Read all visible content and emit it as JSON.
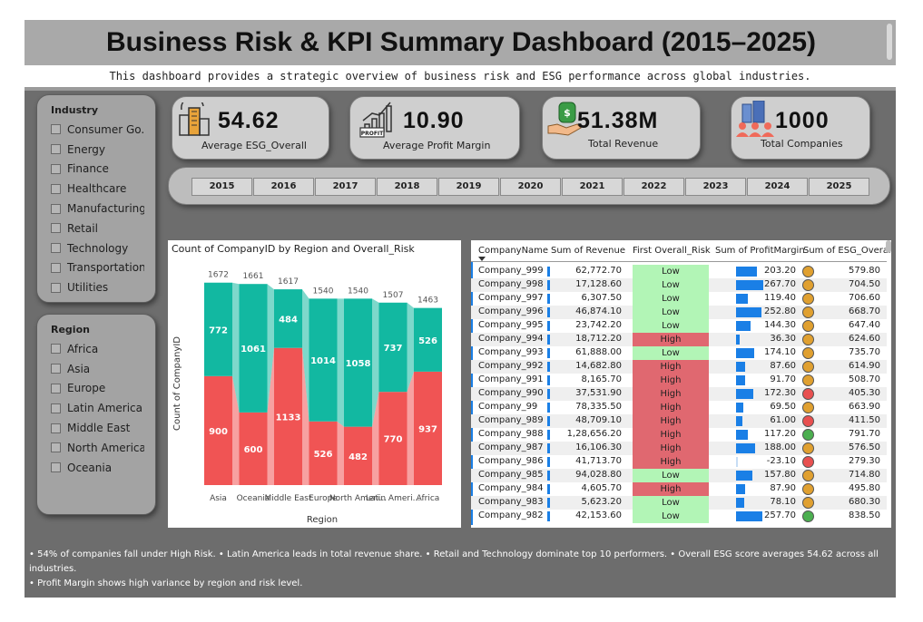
{
  "header": {
    "title": "Business Risk & KPI Summary Dashboard (2015–2025)",
    "subtitle": "This dashboard provides a strategic overview of business risk and ESG performance across global industries."
  },
  "industry_slicer": {
    "title": "Industry",
    "items": [
      "Consumer Go...",
      "Energy",
      "Finance",
      "Healthcare",
      "Manufacturing",
      "Retail",
      "Technology",
      "Transportation",
      "Utilities"
    ]
  },
  "region_slicer": {
    "title": "Region",
    "items": [
      "Africa",
      "Asia",
      "Europe",
      "Latin America",
      "Middle East",
      "North America",
      "Oceania"
    ]
  },
  "kpis": [
    {
      "value": "54.62",
      "label": "Average ESG_Overall",
      "icon": "buildings-icon"
    },
    {
      "value": "10.90",
      "label": "Average Profit Margin",
      "icon": "profit-chart-icon"
    },
    {
      "value": "51.38M",
      "label": "Total Revenue",
      "icon": "money-hand-icon"
    },
    {
      "value": "1000",
      "label": "Total Companies",
      "icon": "company-people-icon"
    }
  ],
  "years": [
    "2015",
    "2016",
    "2017",
    "2018",
    "2019",
    "2020",
    "2021",
    "2022",
    "2023",
    "2024",
    "2025"
  ],
  "colors": {
    "high": "#f05454",
    "low": "#12b8a1",
    "high_row": "#e06870",
    "low_row": "#b2f5b6",
    "accent": "#1a7fe6"
  },
  "chart_data": {
    "type": "bar",
    "title": "Count of CompanyID by Region and Overall_Risk",
    "xlabel": "Region",
    "ylabel": "Count of CompanyID",
    "categories": [
      "Asia",
      "Oceania",
      "Middle East",
      "Europe",
      "North Ameri...",
      "Latin Ameri...",
      "Africa"
    ],
    "totals": [
      1672,
      1661,
      1617,
      1540,
      1540,
      1507,
      1463
    ],
    "series": [
      {
        "name": "High",
        "values": [
          900,
          600,
          1133,
          526,
          482,
          770,
          937
        ]
      },
      {
        "name": "Low",
        "values": [
          772,
          1061,
          484,
          1014,
          1058,
          737,
          526
        ]
      }
    ],
    "ylim": [
      0,
      1700
    ]
  },
  "table": {
    "columns": [
      "CompanyName",
      "Sum of Revenue",
      "First Overall_Risk",
      "Sum of ProfitMargin",
      "Sum of ESG_Overall"
    ],
    "rows": [
      {
        "name": "Company_999",
        "revenue": "62,772.70",
        "risk": "Low",
        "pm": "203.20",
        "pm_val": 203.2,
        "esg": "579.80",
        "dot": "#e0a030"
      },
      {
        "name": "Company_998",
        "revenue": "17,128.60",
        "risk": "Low",
        "pm": "267.70",
        "pm_val": 267.7,
        "esg": "704.50",
        "dot": "#e0a030"
      },
      {
        "name": "Company_997",
        "revenue": "6,307.50",
        "risk": "Low",
        "pm": "119.40",
        "pm_val": 119.4,
        "esg": "706.60",
        "dot": "#e0a030"
      },
      {
        "name": "Company_996",
        "revenue": "46,874.10",
        "risk": "Low",
        "pm": "252.80",
        "pm_val": 252.8,
        "esg": "668.70",
        "dot": "#e0a030"
      },
      {
        "name": "Company_995",
        "revenue": "23,742.20",
        "risk": "Low",
        "pm": "144.30",
        "pm_val": 144.3,
        "esg": "647.40",
        "dot": "#e0a030"
      },
      {
        "name": "Company_994",
        "revenue": "18,712.20",
        "risk": "High",
        "pm": "36.30",
        "pm_val": 36.3,
        "esg": "624.60",
        "dot": "#e0a030"
      },
      {
        "name": "Company_993",
        "revenue": "61,888.00",
        "risk": "Low",
        "pm": "174.10",
        "pm_val": 174.1,
        "esg": "735.70",
        "dot": "#e0a030"
      },
      {
        "name": "Company_992",
        "revenue": "14,682.80",
        "risk": "High",
        "pm": "87.60",
        "pm_val": 87.6,
        "esg": "614.90",
        "dot": "#e0a030"
      },
      {
        "name": "Company_991",
        "revenue": "8,165.70",
        "risk": "High",
        "pm": "91.70",
        "pm_val": 91.7,
        "esg": "508.70",
        "dot": "#e0a030"
      },
      {
        "name": "Company_990",
        "revenue": "37,531.90",
        "risk": "High",
        "pm": "172.30",
        "pm_val": 172.3,
        "esg": "405.30",
        "dot": "#e85050"
      },
      {
        "name": "Company_99",
        "revenue": "78,335.50",
        "risk": "High",
        "pm": "69.50",
        "pm_val": 69.5,
        "esg": "663.90",
        "dot": "#e0a030"
      },
      {
        "name": "Company_989",
        "revenue": "48,709.10",
        "risk": "High",
        "pm": "61.00",
        "pm_val": 61.0,
        "esg": "411.50",
        "dot": "#e85050"
      },
      {
        "name": "Company_988",
        "revenue": "1,28,656.20",
        "risk": "High",
        "pm": "117.20",
        "pm_val": 117.2,
        "esg": "791.70",
        "dot": "#4caf50"
      },
      {
        "name": "Company_987",
        "revenue": "16,106.30",
        "risk": "High",
        "pm": "188.00",
        "pm_val": 188.0,
        "esg": "576.50",
        "dot": "#e0a030"
      },
      {
        "name": "Company_986",
        "revenue": "41,713.70",
        "risk": "High",
        "pm": "-23.10",
        "pm_val": -23.1,
        "esg": "279.30",
        "dot": "#e85050"
      },
      {
        "name": "Company_985",
        "revenue": "94,028.80",
        "risk": "Low",
        "pm": "157.80",
        "pm_val": 157.8,
        "esg": "714.80",
        "dot": "#e0a030"
      },
      {
        "name": "Company_984",
        "revenue": "4,605.70",
        "risk": "High",
        "pm": "87.90",
        "pm_val": 87.9,
        "esg": "495.80",
        "dot": "#e0a030"
      },
      {
        "name": "Company_983",
        "revenue": "5,623.20",
        "risk": "Low",
        "pm": "78.10",
        "pm_val": 78.1,
        "esg": "680.30",
        "dot": "#e0a030"
      },
      {
        "name": "Company_982",
        "revenue": "42,153.60",
        "risk": "Low",
        "pm": "257.70",
        "pm_val": 257.7,
        "esg": "838.50",
        "dot": "#4caf50"
      }
    ]
  },
  "notes": {
    "line1": "• 54% of companies fall under High Risk.  • Latin America leads in total revenue share. • Retail and Technology dominate top 10 performers. • Overall ESG score averages 54.62 across all industries.",
    "line2": "• Profit Margin shows high variance by region and risk level."
  }
}
